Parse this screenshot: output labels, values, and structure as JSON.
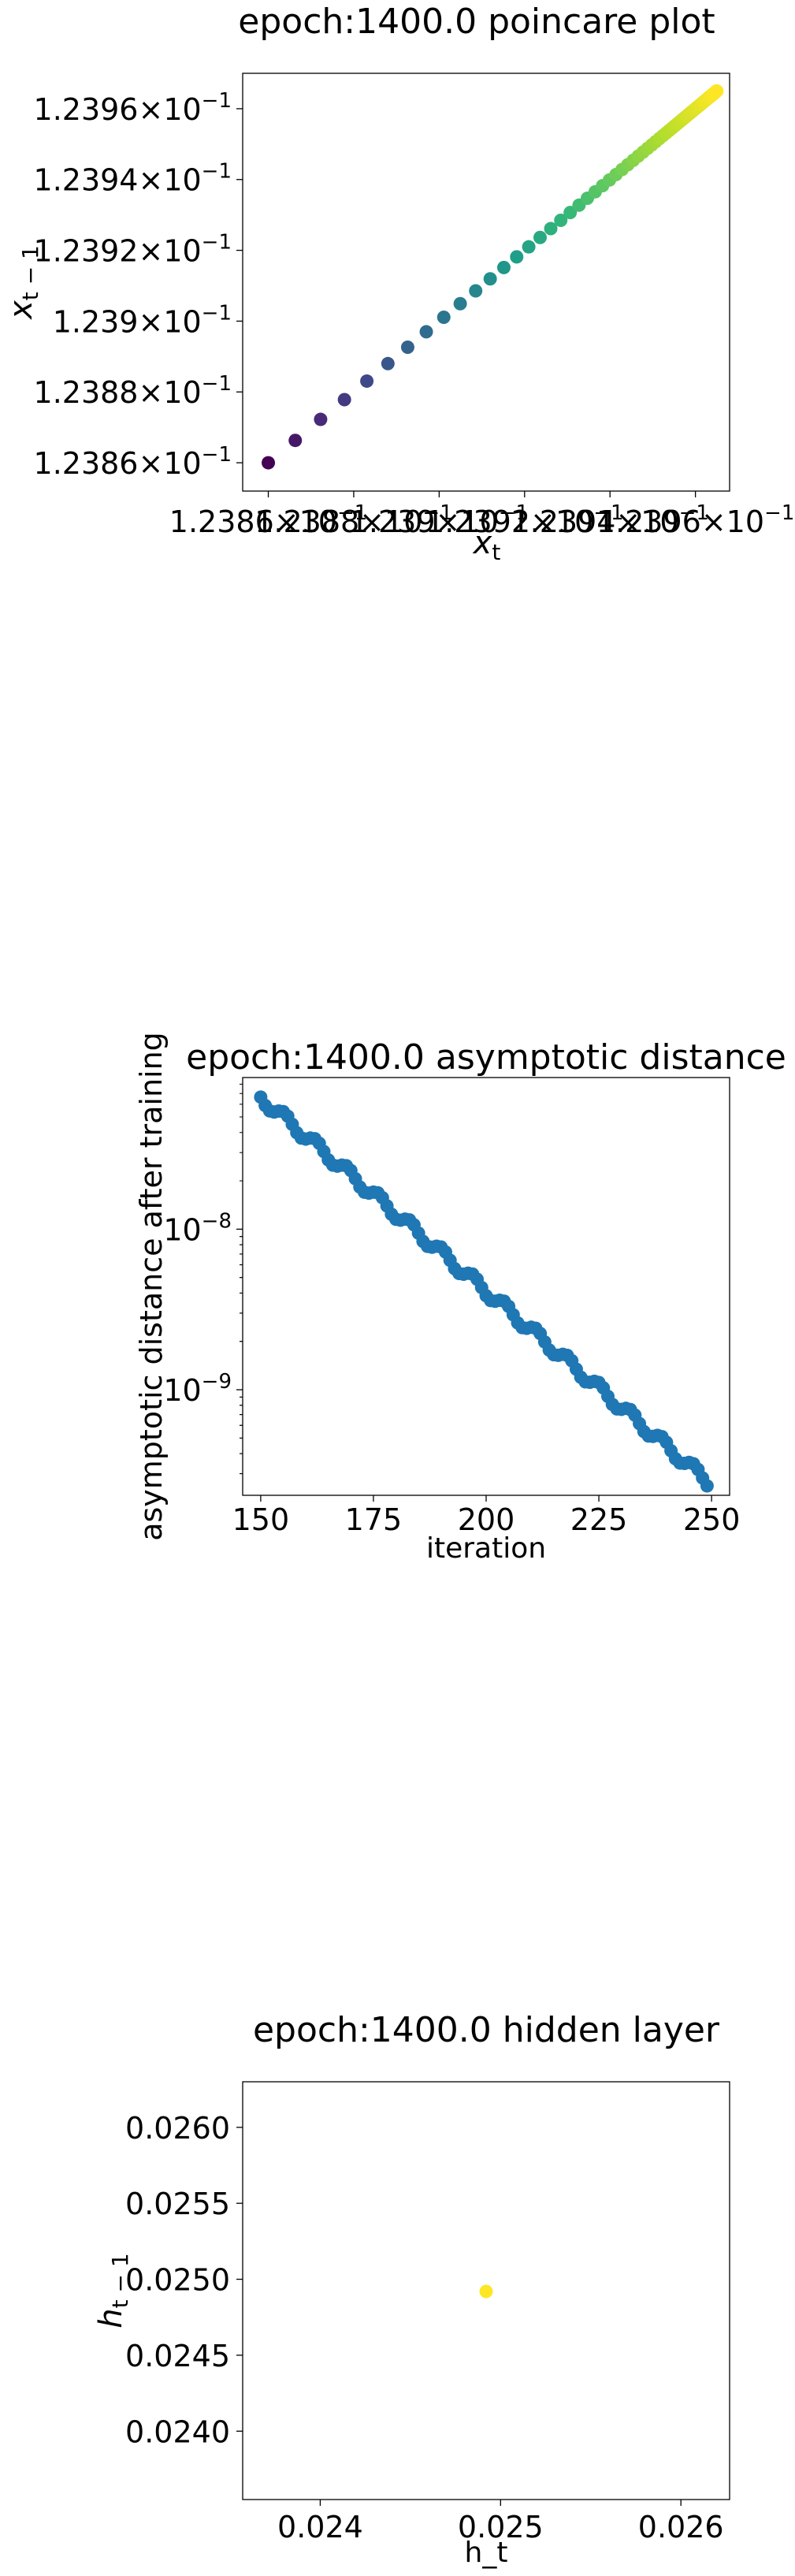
{
  "chart_data": [
    {
      "type": "scatter",
      "title": "epoch:1400.0 poincare plot",
      "xlabel_base": "x",
      "xlabel_sub": "t",
      "ylabel_base": "x",
      "ylabel_sub": "t − 1",
      "xlim": [
        0.123854,
        0.123968
      ],
      "ylim": [
        0.123852,
        0.12397
      ],
      "x_ticks": [
        {
          "value": 0.12386,
          "mantissa": "1.2386"
        },
        {
          "value": 0.12388,
          "mantissa": "1.2388"
        },
        {
          "value": 0.1239,
          "mantissa": "1.239"
        },
        {
          "value": 0.12392,
          "mantissa": "1.2392"
        },
        {
          "value": 0.12394,
          "mantissa": "1.2394"
        },
        {
          "value": 0.12396,
          "mantissa": "1.2396"
        }
      ],
      "y_ticks": [
        {
          "value": 0.12386,
          "mantissa": "1.2386"
        },
        {
          "value": 0.12388,
          "mantissa": "1.2388"
        },
        {
          "value": 0.1239,
          "mantissa": "1.239"
        },
        {
          "value": 0.12392,
          "mantissa": "1.2392"
        },
        {
          "value": 0.12394,
          "mantissa": "1.2394"
        },
        {
          "value": 0.12396,
          "mantissa": "1.2396"
        }
      ],
      "tick_times": "×",
      "tick_base": "10",
      "tick_exp": "−1",
      "colormap": "viridis",
      "point_count": 100,
      "x_start": 0.12386,
      "x_end": 0.123965,
      "growth": 0.94
    },
    {
      "type": "scatter",
      "title": "epoch:1400.0 asymptotic distance",
      "xlabel": "iteration",
      "ylabel": "asymptotic distance after training",
      "xlim": [
        146,
        254
      ],
      "yscale": "log",
      "ylim": [
        2.2e-10,
        8.8e-08
      ],
      "x_ticks": [
        150,
        175,
        200,
        225,
        250
      ],
      "y_ticks": [
        {
          "value": 1e-08,
          "mantissa": "10",
          "exp": "−8"
        },
        {
          "value": 1e-09,
          "mantissa": "10",
          "exp": "−9"
        }
      ],
      "color": "#1f77b4",
      "x_start": 150,
      "x_end": 249,
      "y_start": 6.6e-08,
      "y_end": 2.7e-10
    },
    {
      "type": "scatter",
      "title": "epoch:1400.0 hidden layer",
      "xlabel": "h_t",
      "ylabel_base": "h",
      "ylabel_sub": "t − 1",
      "xlim": [
        0.02357,
        0.02627
      ],
      "ylim": [
        0.02355,
        0.0263
      ],
      "x_ticks": [
        "0.024",
        "0.025",
        "0.026"
      ],
      "y_ticks": [
        "0.0240",
        "0.0245",
        "0.0250",
        "0.0255",
        "0.0260"
      ],
      "points": [
        {
          "x": 0.02492,
          "y": 0.02492
        }
      ],
      "color": "#fde725"
    }
  ]
}
